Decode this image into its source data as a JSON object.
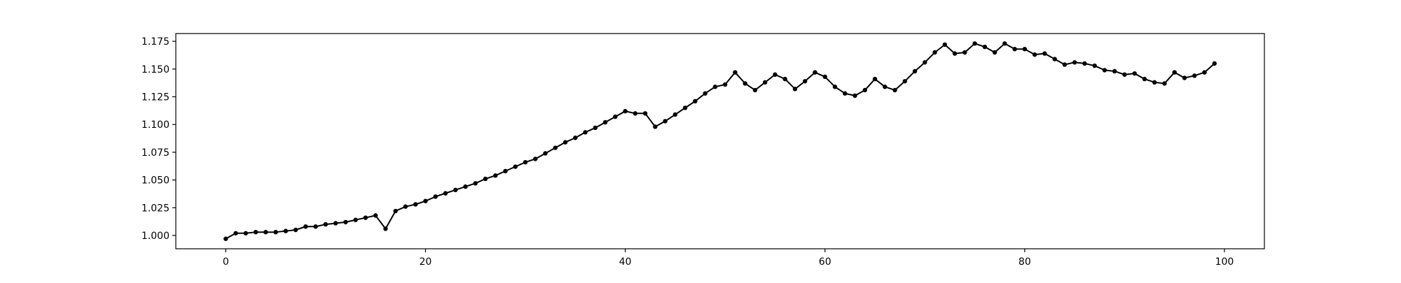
{
  "chart_data": {
    "type": "line",
    "title": "",
    "xlabel": "",
    "ylabel": "",
    "xlim": [
      -5,
      104
    ],
    "ylim": [
      0.988,
      1.182
    ],
    "x_ticks": [
      0,
      20,
      40,
      60,
      80,
      100
    ],
    "y_ticks": [
      1.0,
      1.025,
      1.05,
      1.075,
      1.1,
      1.125,
      1.15,
      1.175
    ],
    "x_tick_labels": [
      "0",
      "20",
      "40",
      "60",
      "80",
      "100"
    ],
    "y_tick_labels": [
      "1.000",
      "1.025",
      "1.050",
      "1.075",
      "1.100",
      "1.125",
      "1.150",
      "1.175"
    ],
    "grid": false,
    "legend": "none",
    "line_color": "#000000",
    "marker": "circle",
    "series": [
      {
        "values": [
          0.997,
          1.002,
          1.002,
          1.003,
          1.003,
          1.003,
          1.004,
          1.005,
          1.008,
          1.008,
          1.01,
          1.011,
          1.012,
          1.014,
          1.016,
          1.018,
          1.006,
          1.022,
          1.026,
          1.028,
          1.031,
          1.035,
          1.038,
          1.041,
          1.044,
          1.047,
          1.051,
          1.054,
          1.058,
          1.062,
          1.066,
          1.069,
          1.074,
          1.079,
          1.084,
          1.088,
          1.093,
          1.097,
          1.102,
          1.107,
          1.112,
          1.11,
          1.11,
          1.098,
          1.103,
          1.109,
          1.115,
          1.121,
          1.128,
          1.134,
          1.136,
          1.147,
          1.137,
          1.131,
          1.138,
          1.145,
          1.141,
          1.132,
          1.139,
          1.147,
          1.143,
          1.134,
          1.128,
          1.126,
          1.131,
          1.141,
          1.134,
          1.131,
          1.139,
          1.148,
          1.156,
          1.165,
          1.172,
          1.164,
          1.165,
          1.173,
          1.17,
          1.165,
          1.173,
          1.168,
          1.168,
          1.163,
          1.164,
          1.159,
          1.154,
          1.156,
          1.155,
          1.153,
          1.149,
          1.148,
          1.145,
          1.146,
          1.141,
          1.138,
          1.137,
          1.147,
          1.142,
          1.144,
          1.147,
          1.155
        ]
      }
    ]
  }
}
